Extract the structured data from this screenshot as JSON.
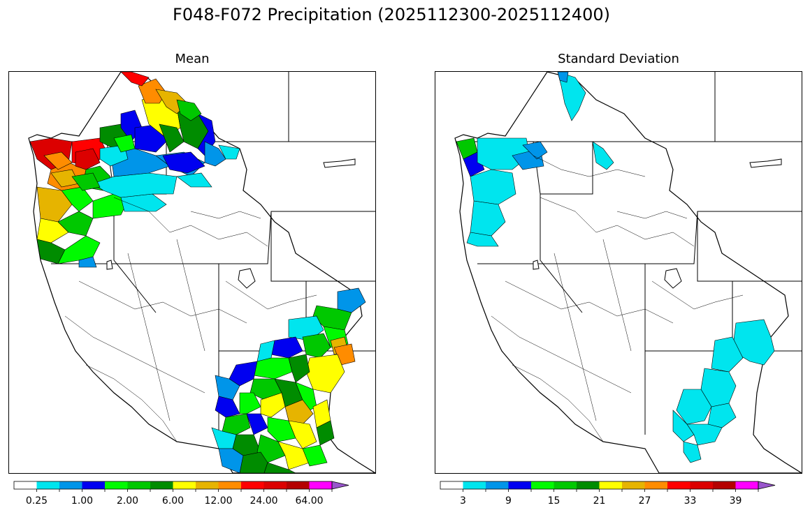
{
  "title": "F048-F072 Precipitation (2025112300-2025112400)",
  "panels": [
    {
      "title": "Mean",
      "colorbar": {
        "colors": [
          "#ffffff",
          "#00e5ee",
          "#0095e9",
          "#0000f0",
          "#00fa00",
          "#00c800",
          "#008c00",
          "#ffff00",
          "#e6b400",
          "#ff8c00",
          "#ff0000",
          "#dc0000",
          "#b40000",
          "#ff00ff",
          "#9955cc"
        ],
        "tick_labels": [
          "0.25",
          "1.00",
          "2.00",
          "6.00",
          "12.00",
          "24.00",
          "64.00"
        ]
      }
    },
    {
      "title": "Standard Deviation",
      "colorbar": {
        "colors": [
          "#ffffff",
          "#00e5ee",
          "#0095e9",
          "#0000f0",
          "#00fa00",
          "#00c800",
          "#008c00",
          "#ffff00",
          "#e6b400",
          "#ff8c00",
          "#ff0000",
          "#dc0000",
          "#b40000",
          "#ff00ff",
          "#9955cc"
        ],
        "tick_labels": [
          "3",
          "9",
          "15",
          "21",
          "27",
          "33",
          "39"
        ]
      }
    }
  ]
}
